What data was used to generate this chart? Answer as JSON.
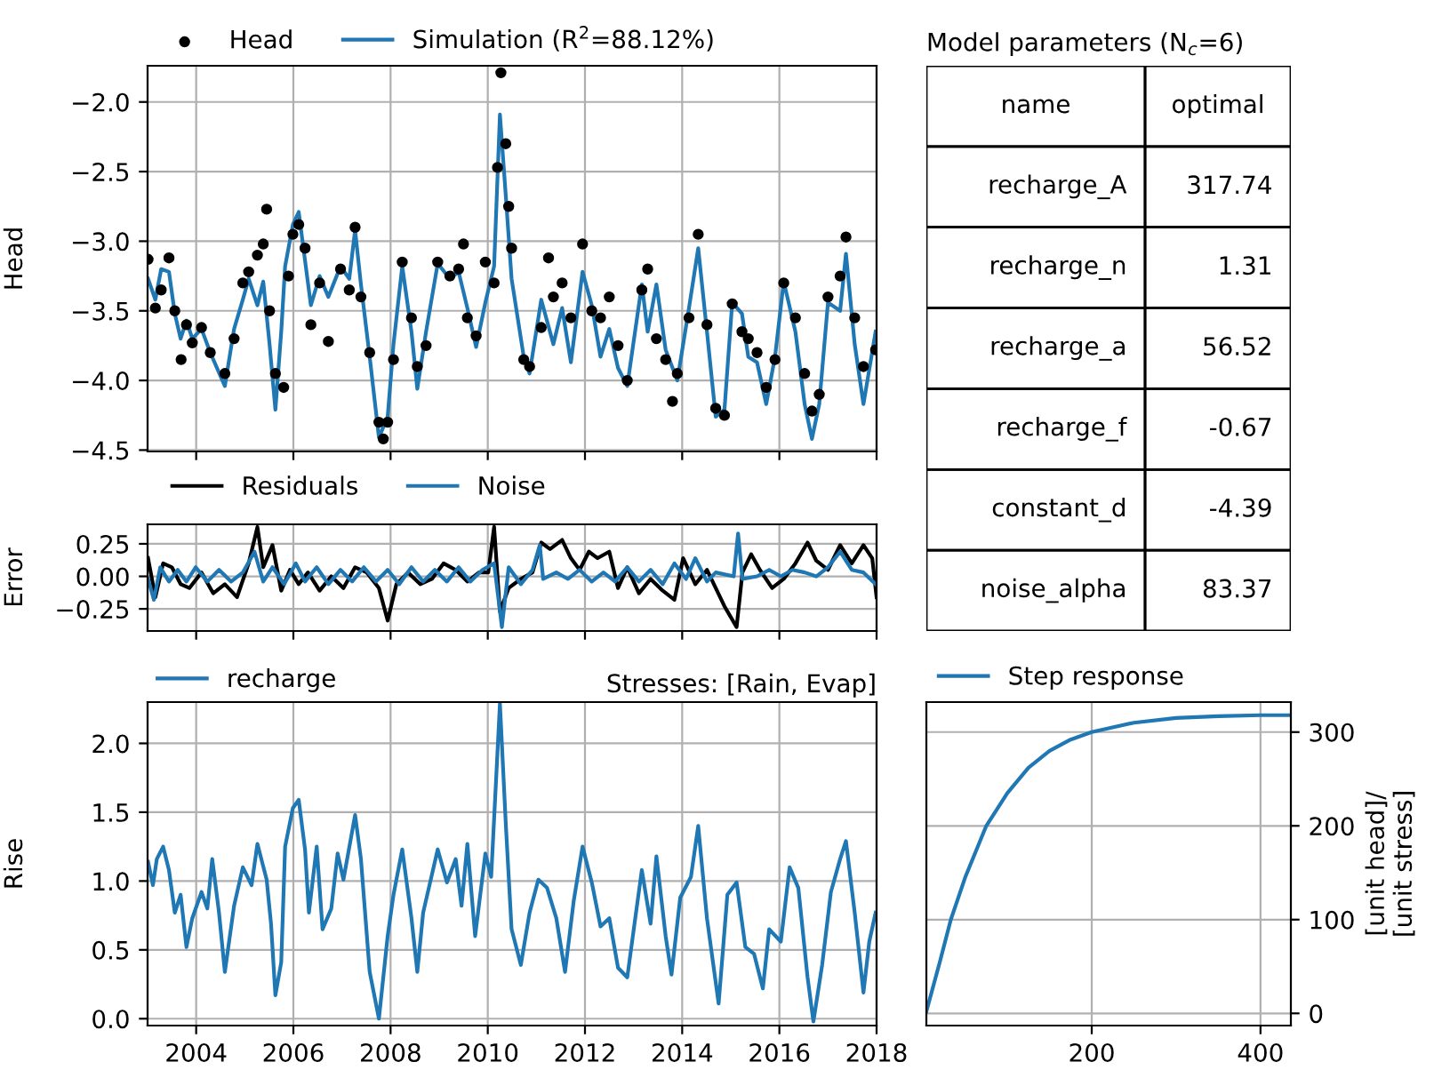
{
  "chart_data": [
    {
      "type": "line",
      "ylabel": "Head",
      "legend": "top left",
      "grid": true,
      "tick_labels": "y",
      "xlim": [
        2003,
        2018
      ],
      "xticks": [
        {
          "value": 2004,
          "label": null
        },
        {
          "value": 2006,
          "label": null
        },
        {
          "value": 2008,
          "label": null
        },
        {
          "value": 2010,
          "label": null
        },
        {
          "value": 2012,
          "label": null
        },
        {
          "value": 2014,
          "label": null
        },
        {
          "value": 2016,
          "label": null
        },
        {
          "value": 2018,
          "label": null
        }
      ],
      "ylim": [
        -4.51,
        -1.74
      ],
      "yticks": [
        {
          "value": -4.5,
          "label": "−4.5"
        },
        {
          "value": -4.0,
          "label": "−4.0"
        },
        {
          "value": -3.5,
          "label": "−3.5"
        },
        {
          "value": -3.0,
          "label": "−3.0"
        },
        {
          "value": -2.5,
          "label": "−2.5"
        },
        {
          "value": -2.0,
          "label": "−2.0"
        }
      ],
      "series": [
        {
          "name": "Head",
          "type": "scatter",
          "marker": "circle",
          "color": "#000000",
          "x": [
            2003.01,
            2003.16,
            2003.28,
            2003.44,
            2003.56,
            2003.69,
            2003.8,
            2003.92,
            2004.11,
            2004.29,
            2004.59,
            2004.78,
            2004.96,
            2005.08,
            2005.26,
            2005.38,
            2005.45,
            2005.51,
            2005.63,
            2005.8,
            2005.9,
            2005.99,
            2006.11,
            2006.24,
            2006.36,
            2006.54,
            2006.72,
            2006.97,
            2007.15,
            2007.27,
            2007.39,
            2007.57,
            2007.76,
            2007.85,
            2007.94,
            2008.06,
            2008.24,
            2008.43,
            2008.55,
            2008.73,
            2008.97,
            2009.22,
            2009.4,
            2009.5,
            2009.58,
            2009.76,
            2009.95,
            2010.13,
            2010.2,
            2010.27,
            2010.37,
            2010.43,
            2010.49,
            2010.74,
            2010.86,
            2011.1,
            2011.25,
            2011.35,
            2011.53,
            2011.71,
            2011.95,
            2012.14,
            2012.32,
            2012.5,
            2012.68,
            2012.87,
            2013.17,
            2013.29,
            2013.47,
            2013.66,
            2013.8,
            2013.9,
            2014.14,
            2014.33,
            2014.51,
            2014.69,
            2014.87,
            2015.03,
            2015.23,
            2015.36,
            2015.54,
            2015.73,
            2015.91,
            2016.09,
            2016.33,
            2016.52,
            2016.67,
            2016.82,
            2017.0,
            2017.25,
            2017.37,
            2017.55,
            2017.73,
            2017.98
          ],
          "values": [
            -3.13,
            -3.48,
            -3.35,
            -3.12,
            -3.5,
            -3.85,
            -3.6,
            -3.73,
            -3.62,
            -3.8,
            -3.95,
            -3.7,
            -3.3,
            -3.22,
            -3.1,
            -3.02,
            -2.77,
            -3.5,
            -3.95,
            -4.05,
            -3.25,
            -2.95,
            -2.88,
            -3.05,
            -3.6,
            -3.3,
            -3.72,
            -3.2,
            -3.35,
            -2.9,
            -3.4,
            -3.8,
            -4.3,
            -4.42,
            -4.3,
            -3.85,
            -3.15,
            -3.55,
            -3.9,
            -3.75,
            -3.15,
            -3.25,
            -3.2,
            -3.02,
            -3.55,
            -3.68,
            -3.15,
            -3.3,
            -2.47,
            -1.79,
            -2.3,
            -2.75,
            -3.05,
            -3.85,
            -3.9,
            -3.62,
            -3.12,
            -3.4,
            -3.3,
            -3.55,
            -3.02,
            -3.5,
            -3.55,
            -3.4,
            -3.75,
            -4.0,
            -3.35,
            -3.2,
            -3.7,
            -3.85,
            -4.15,
            -3.95,
            -3.55,
            -2.95,
            -3.6,
            -4.2,
            -4.25,
            -3.45,
            -3.65,
            -3.7,
            -3.8,
            -4.05,
            -3.85,
            -3.3,
            -3.55,
            -3.95,
            -4.22,
            -4.1,
            -3.4,
            -3.25,
            -2.97,
            -3.55,
            -3.9,
            -3.78
          ]
        },
        {
          "name": "Simulation (R$^{2}$=88.12%)",
          "type": "line",
          "color": "#1f77b4",
          "x": [
            2003.01,
            2003.16,
            2003.28,
            2003.44,
            2003.56,
            2003.68,
            2003.8,
            2003.92,
            2004.11,
            2004.29,
            2004.59,
            2004.78,
            2004.96,
            2005.08,
            2005.26,
            2005.38,
            2005.51,
            2005.63,
            2005.75,
            2005.83,
            2005.99,
            2006.11,
            2006.24,
            2006.36,
            2006.54,
            2006.72,
            2006.97,
            2007.15,
            2007.27,
            2007.39,
            2007.57,
            2007.76,
            2007.94,
            2008.06,
            2008.24,
            2008.43,
            2008.55,
            2008.73,
            2008.97,
            2009.22,
            2009.4,
            2009.58,
            2009.76,
            2009.95,
            2010.13,
            2010.25,
            2010.37,
            2010.49,
            2010.74,
            2010.86,
            2011.1,
            2011.35,
            2011.53,
            2011.71,
            2011.95,
            2012.14,
            2012.32,
            2012.5,
            2012.68,
            2012.87,
            2013.17,
            2013.29,
            2013.47,
            2013.66,
            2013.9,
            2014.14,
            2014.33,
            2014.51,
            2014.69,
            2014.87,
            2015.03,
            2015.23,
            2015.36,
            2015.54,
            2015.73,
            2015.91,
            2016.09,
            2016.33,
            2016.52,
            2016.67,
            2016.82,
            2017.0,
            2017.25,
            2017.37,
            2017.55,
            2017.73,
            2017.98
          ],
          "values": [
            -3.27,
            -3.42,
            -3.2,
            -3.22,
            -3.52,
            -3.7,
            -3.57,
            -3.7,
            -3.63,
            -3.8,
            -4.04,
            -3.63,
            -3.42,
            -3.27,
            -3.46,
            -3.29,
            -3.74,
            -4.21,
            -3.65,
            -3.18,
            -2.88,
            -2.79,
            -3.14,
            -3.46,
            -3.25,
            -3.4,
            -3.18,
            -3.27,
            -2.92,
            -3.31,
            -3.83,
            -4.41,
            -4.26,
            -3.74,
            -3.18,
            -3.65,
            -4.06,
            -3.65,
            -3.16,
            -3.27,
            -3.22,
            -3.48,
            -3.76,
            -3.44,
            -3.18,
            -2.09,
            -2.67,
            -3.27,
            -3.83,
            -3.95,
            -3.42,
            -3.74,
            -3.48,
            -3.87,
            -3.22,
            -3.46,
            -3.83,
            -3.63,
            -3.91,
            -4.04,
            -3.31,
            -3.65,
            -3.31,
            -3.78,
            -4.0,
            -3.48,
            -3.05,
            -3.65,
            -4.26,
            -4.21,
            -3.44,
            -3.52,
            -3.83,
            -3.87,
            -4.17,
            -3.83,
            -3.29,
            -3.65,
            -4.17,
            -4.42,
            -4.17,
            -3.44,
            -3.5,
            -3.09,
            -3.74,
            -4.17,
            -3.65
          ]
        }
      ]
    },
    {
      "type": "other",
      "title": "Model parameters (N$_{c}$=6)",
      "categories": [
        "name",
        "optimal"
      ],
      "y_categories": [
        "recharge_A",
        "recharge_n",
        "recharge_a",
        "recharge_f",
        "constant_d",
        "noise_alpha"
      ],
      "cell_labels": [
        [
          "317.74"
        ],
        [
          "1.31"
        ],
        [
          "56.52"
        ],
        [
          "-0.67"
        ],
        [
          "-4.39"
        ],
        [
          "83.37"
        ]
      ]
    },
    {
      "type": "line",
      "ylabel": "Error",
      "legend": "top left",
      "grid": true,
      "tick_labels": "y",
      "xlim": [
        2003,
        2018
      ],
      "xticks": [
        {
          "value": 2004,
          "label": null
        },
        {
          "value": 2006,
          "label": null
        },
        {
          "value": 2008,
          "label": null
        },
        {
          "value": 2010,
          "label": null
        },
        {
          "value": 2012,
          "label": null
        },
        {
          "value": 2014,
          "label": null
        },
        {
          "value": 2016,
          "label": null
        },
        {
          "value": 2018,
          "label": null
        }
      ],
      "ylim": [
        -0.42,
        0.4
      ],
      "yticks": [
        {
          "value": -0.25,
          "label": "−0.25"
        },
        {
          "value": 0,
          "label": "0.00"
        },
        {
          "value": 0.25,
          "label": "0.25"
        }
      ],
      "series": [
        {
          "name": "Residuals",
          "color": "#000000",
          "x": [
            2003.01,
            2003.16,
            2003.32,
            2003.5,
            2003.68,
            2003.86,
            2004.11,
            2004.35,
            2004.59,
            2004.84,
            2005.08,
            2005.26,
            2005.38,
            2005.57,
            2005.75,
            2005.93,
            2006.11,
            2006.3,
            2006.54,
            2006.78,
            2007.03,
            2007.27,
            2007.51,
            2007.76,
            2007.94,
            2008.12,
            2008.36,
            2008.61,
            2008.85,
            2009.09,
            2009.34,
            2009.58,
            2009.82,
            2010.01,
            2010.13,
            2010.25,
            2010.43,
            2010.68,
            2010.92,
            2011.1,
            2011.28,
            2011.53,
            2011.71,
            2011.89,
            2012.08,
            2012.26,
            2012.5,
            2012.68,
            2012.87,
            2013.11,
            2013.35,
            2013.6,
            2013.84,
            2014.02,
            2014.27,
            2014.51,
            2014.69,
            2014.87,
            2015.12,
            2015.24,
            2015.42,
            2015.6,
            2015.85,
            2016.09,
            2016.33,
            2016.58,
            2016.76,
            2017.0,
            2017.25,
            2017.49,
            2017.73,
            2017.91,
            2018.0
          ],
          "values": [
            0.14,
            -0.16,
            0.1,
            0.07,
            -0.06,
            -0.09,
            0.03,
            -0.13,
            -0.06,
            -0.16,
            0.1,
            0.38,
            0.07,
            0.24,
            -0.11,
            0.05,
            -0.06,
            0.03,
            -0.11,
            0.0,
            -0.09,
            0.07,
            0.03,
            -0.09,
            -0.34,
            -0.06,
            0.03,
            -0.06,
            -0.02,
            0.1,
            0.05,
            -0.04,
            0.03,
            0.03,
            0.38,
            -0.27,
            -0.09,
            -0.02,
            0.03,
            0.26,
            0.21,
            0.28,
            0.14,
            0.05,
            0.19,
            0.14,
            0.19,
            -0.09,
            0.07,
            -0.13,
            -0.02,
            -0.11,
            -0.18,
            0.14,
            -0.06,
            0.05,
            -0.09,
            -0.23,
            -0.39,
            0.03,
            0.17,
            0.05,
            -0.09,
            -0.02,
            0.1,
            0.26,
            0.12,
            0.05,
            0.24,
            0.1,
            0.24,
            0.14,
            -0.16
          ]
        },
        {
          "name": "Noise",
          "color": "#1f77b4",
          "x": [
            2003.01,
            2003.13,
            2003.26,
            2003.44,
            2003.62,
            2003.8,
            2003.99,
            2004.23,
            2004.47,
            2004.72,
            2004.96,
            2005.2,
            2005.38,
            2005.57,
            2005.81,
            2006.05,
            2006.24,
            2006.48,
            2006.72,
            2006.97,
            2007.21,
            2007.45,
            2007.7,
            2007.94,
            2008.18,
            2008.43,
            2008.67,
            2008.91,
            2009.16,
            2009.4,
            2009.64,
            2009.89,
            2010.13,
            2010.29,
            2010.43,
            2010.68,
            2010.92,
            2011.07,
            2011.14,
            2011.41,
            2011.65,
            2011.89,
            2012.14,
            2012.38,
            2012.62,
            2012.87,
            2013.11,
            2013.35,
            2013.6,
            2013.84,
            2014.08,
            2014.27,
            2014.51,
            2014.69,
            2015.06,
            2015.15,
            2015.24,
            2015.54,
            2015.79,
            2016.03,
            2016.27,
            2016.52,
            2016.76,
            2017.0,
            2017.25,
            2017.49,
            2017.73,
            2017.98
          ],
          "values": [
            -0.02,
            -0.18,
            0.07,
            -0.04,
            0.05,
            -0.04,
            0.07,
            -0.04,
            0.05,
            -0.04,
            0.03,
            0.19,
            -0.04,
            0.07,
            -0.06,
            0.1,
            -0.04,
            0.07,
            -0.06,
            0.05,
            -0.04,
            0.07,
            -0.04,
            0.05,
            -0.06,
            0.07,
            -0.04,
            0.05,
            -0.04,
            0.07,
            -0.04,
            0.05,
            0.1,
            -0.39,
            0.07,
            -0.06,
            0.05,
            0.24,
            -0.02,
            0.03,
            -0.02,
            0.05,
            -0.04,
            0.03,
            -0.04,
            0.07,
            -0.04,
            0.05,
            -0.06,
            0.1,
            -0.02,
            0.14,
            -0.04,
            0.03,
            0.0,
            0.33,
            -0.02,
            0.0,
            0.05,
            0.0,
            0.05,
            0.03,
            0.0,
            0.07,
            0.19,
            0.05,
            0.03,
            -0.06
          ]
        }
      ]
    },
    {
      "type": "line",
      "title": "Stresses: [Rain, Evap]",
      "ylabel": "Rise",
      "legend": "top left",
      "grid": true,
      "xlim": [
        2003,
        2018
      ],
      "xticks": [
        2004,
        2006,
        2008,
        2010,
        2012,
        2014,
        2016,
        2018
      ],
      "ylim": [
        -0.05,
        2.3
      ],
      "yticks": [
        {
          "value": 0,
          "label": "0.0"
        },
        {
          "value": 0.5,
          "label": "0.5"
        },
        {
          "value": 1,
          "label": "1.0"
        },
        {
          "value": 1.5,
          "label": "1.5"
        },
        {
          "value": 2,
          "label": "2.0"
        }
      ],
      "series": [
        {
          "name": "recharge",
          "color": "#1f77b4",
          "x": [
            2003.01,
            2003.11,
            2003.19,
            2003.32,
            2003.44,
            2003.56,
            2003.68,
            2003.8,
            2003.92,
            2004.11,
            2004.23,
            2004.33,
            2004.47,
            2004.59,
            2004.78,
            2004.96,
            2005.14,
            2005.26,
            2005.45,
            2005.54,
            2005.63,
            2005.75,
            2005.83,
            2005.99,
            2006.11,
            2006.24,
            2006.32,
            2006.48,
            2006.6,
            2006.78,
            2006.91,
            2007.03,
            2007.27,
            2007.39,
            2007.57,
            2007.76,
            2007.94,
            2008.06,
            2008.24,
            2008.43,
            2008.55,
            2008.67,
            2008.97,
            2009.16,
            2009.34,
            2009.46,
            2009.58,
            2009.74,
            2009.95,
            2010.07,
            2010.25,
            2010.37,
            2010.49,
            2010.68,
            2010.86,
            2011.04,
            2011.22,
            2011.41,
            2011.59,
            2011.77,
            2011.95,
            2012.14,
            2012.32,
            2012.5,
            2012.68,
            2012.87,
            2013.05,
            2013.17,
            2013.35,
            2013.47,
            2013.66,
            2013.78,
            2013.96,
            2014.18,
            2014.33,
            2014.51,
            2014.75,
            2014.93,
            2015.12,
            2015.3,
            2015.48,
            2015.66,
            2015.79,
            2016.03,
            2016.21,
            2016.39,
            2016.58,
            2016.7,
            2016.88,
            2017.06,
            2017.25,
            2017.37,
            2017.55,
            2017.73,
            2017.85,
            2017.98
          ],
          "values": [
            1.14,
            0.97,
            1.16,
            1.25,
            1.08,
            0.77,
            0.9,
            0.52,
            0.73,
            0.92,
            0.8,
            1.16,
            0.77,
            0.34,
            0.82,
            1.1,
            0.97,
            1.27,
            1.01,
            0.69,
            0.17,
            0.41,
            1.25,
            1.53,
            1.59,
            1.23,
            0.77,
            1.25,
            0.65,
            0.8,
            1.2,
            1.01,
            1.48,
            1.16,
            0.34,
            0.0,
            0.6,
            0.9,
            1.23,
            0.73,
            0.34,
            0.77,
            1.23,
            0.99,
            1.16,
            0.82,
            1.27,
            0.6,
            1.2,
            1.03,
            2.29,
            1.42,
            0.65,
            0.39,
            0.77,
            1.01,
            0.95,
            0.73,
            0.34,
            0.86,
            1.25,
            0.99,
            0.67,
            0.73,
            0.37,
            0.3,
            0.77,
            1.08,
            0.69,
            1.18,
            0.6,
            0.32,
            0.88,
            1.03,
            1.4,
            0.73,
            0.11,
            0.9,
            0.99,
            0.52,
            0.47,
            0.22,
            0.65,
            0.56,
            1.1,
            0.95,
            0.3,
            -0.02,
            0.39,
            0.92,
            1.16,
            1.29,
            0.77,
            0.19,
            0.56,
            0.77
          ]
        }
      ]
    },
    {
      "type": "line",
      "y2label": "[unit head]/\n[unit stress]",
      "legend": "top left",
      "grid": true,
      "xlim": [
        4,
        436
      ],
      "xticks": [
        200,
        400
      ],
      "y2lim": [
        -13,
        332
      ],
      "y2ticks": [
        0,
        100,
        200,
        300
      ],
      "series": [
        {
          "name": "Step response",
          "color": "#1f77b4",
          "axis": "y2",
          "x": [
            4,
            20,
            33,
            50,
            75,
            100,
            125,
            150,
            175,
            200,
            250,
            300,
            350,
            400,
            436
          ],
          "values": [
            2,
            55,
            100,
            145,
            200,
            235,
            262,
            280,
            292,
            300,
            310,
            315,
            317,
            318,
            318
          ]
        }
      ]
    }
  ]
}
